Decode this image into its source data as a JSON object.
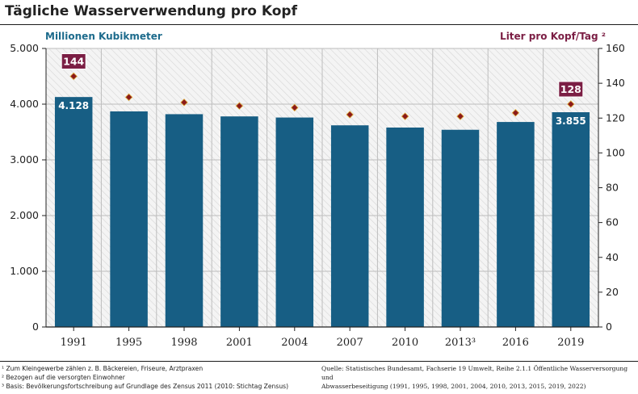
{
  "title": "Tägliche Wasserverwendung pro Kopf",
  "chart_data": {
    "type": "bar",
    "categories": [
      "1991",
      "1995",
      "1998",
      "2001",
      "2004",
      "2007",
      "2010",
      "2013³",
      "2016",
      "2019"
    ],
    "series": [
      {
        "axis": "left",
        "type": "bar",
        "values": [
          4128,
          3870,
          3820,
          3780,
          3760,
          3620,
          3580,
          3540,
          3680,
          3855
        ],
        "labeled_values": {
          "0": "4.128",
          "9": "3.855"
        },
        "color": "#175e84"
      },
      {
        "axis": "right",
        "type": "scatter",
        "values": [
          144,
          132,
          129,
          127,
          126,
          122,
          121,
          121,
          123,
          128
        ],
        "labeled_values": {
          "0": "144",
          "9": "128"
        },
        "color": "#8b1a1a"
      }
    ],
    "ylabel_left": "Millionen Kubikmeter",
    "ylabel_right": "Liter pro Kopf/Tag ²",
    "ylim_left": [
      0,
      5000
    ],
    "ylim_right": [
      0,
      160
    ],
    "yticks_left": [
      "0",
      "1.000",
      "2.000",
      "3.000",
      "4.000",
      "5.000"
    ],
    "yticks_right": [
      "0",
      "20",
      "40",
      "60",
      "80",
      "100",
      "120",
      "140",
      "160"
    ],
    "grid": true,
    "label_color": "#7b1e44"
  },
  "footnotes": [
    "¹ Zum Kleingewerbe  zählen z. B. Bäckereien, Friseure, Arztpraxen",
    "² Bezogen auf die versorgten Einwohner",
    "³ Basis: Bevölkerungsfortschreibung auf Grundlage des Zensus 2011 (2010: Stichtag Zensus)"
  ],
  "source_lines": [
    "Quelle: Statistisches Bundesamt, Fachserie 19 Umwelt, Reihe 2.1.1  Öffentliche Wasserversorgung und",
    "Abwasserbeseitigung (1991, 1995, 1998, 2001, 2004, 2010, 2013, 2015, 2019, 2022)"
  ]
}
